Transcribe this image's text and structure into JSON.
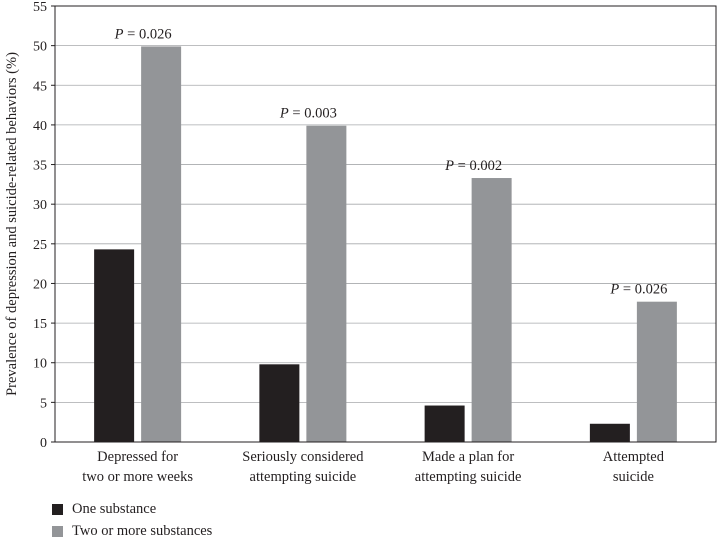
{
  "chart_data": {
    "type": "bar",
    "title": "",
    "xlabel": "",
    "ylabel": "Prevalence of depression and suicide-related behaviors (%)",
    "ylim": [
      0,
      55
    ],
    "yticks": [
      0,
      5,
      10,
      15,
      20,
      25,
      30,
      35,
      40,
      45,
      50,
      55
    ],
    "grid": "horizontal",
    "legend_position": "bottom-left",
    "categories": [
      [
        "Depressed for",
        "two or more weeks"
      ],
      [
        "Seriously considered",
        "attempting suicide"
      ],
      [
        "Made a plan for",
        "attempting suicide"
      ],
      [
        "Attempted",
        "suicide"
      ]
    ],
    "series": [
      {
        "name": "One substance",
        "color": "#231f20",
        "values": [
          24.3,
          9.8,
          4.6,
          2.3
        ]
      },
      {
        "name": "Two or more substances",
        "color": "#939598",
        "values": [
          49.9,
          39.9,
          33.3,
          17.7
        ]
      }
    ],
    "annotations": [
      {
        "italic": "P",
        "text": " = 0.026"
      },
      {
        "italic": "P",
        "text": " = 0.003"
      },
      {
        "italic": "P",
        "text": " = 0.002"
      },
      {
        "italic": "P",
        "text": " = 0.026"
      }
    ]
  }
}
